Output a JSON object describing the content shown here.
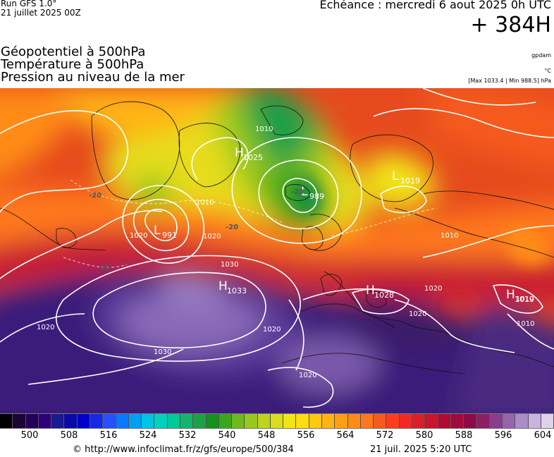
{
  "header": {
    "run_line1": "Run GFS 1.0°",
    "run_line2": "21 juillet 2025 00Z",
    "echeance": "Echéance : mercredi 6 aout 2025 0h UTC",
    "horizon": "+ 384H"
  },
  "parameters": [
    "Géopotentiel à 500hPa",
    "Température à 500hPa",
    "Pression au niveau de la mer"
  ],
  "units": {
    "geopotential": "gpdam",
    "temperature": "°C",
    "pressure_range": "[Max 1033.4 | Min 988.5] hPa"
  },
  "pressure_centers": [
    {
      "type": "H",
      "value": "1025"
    },
    {
      "type": "L",
      "value": "989"
    },
    {
      "type": "L",
      "value": "991"
    },
    {
      "type": "L",
      "value": "1019"
    },
    {
      "type": "H",
      "value": "1033"
    },
    {
      "type": "H",
      "value": "1028"
    },
    {
      "type": "H",
      "value": "1019"
    }
  ],
  "isobar_labels": [
    "1010",
    "1010",
    "1020",
    "1030",
    "1020",
    "1030",
    "1020",
    "1020",
    "1020",
    "1010",
    "1010",
    "1020",
    "1010",
    "1020"
  ],
  "temp_labels": [
    "-20",
    "-20",
    "-20",
    "-20"
  ],
  "color_scale": {
    "colors": [
      "#000000",
      "#1a0533",
      "#23005a",
      "#2d007a",
      "#1a1a8f",
      "#0a0aa8",
      "#0000c8",
      "#1428e6",
      "#2850ff",
      "#0a78ff",
      "#00a0f0",
      "#00c3e6",
      "#00d2be",
      "#00c896",
      "#14b46e",
      "#1ea046",
      "#14911e",
      "#3ca51e",
      "#6eb91e",
      "#96c81e",
      "#bed21e",
      "#dcdc1e",
      "#f0e614",
      "#ffdc14",
      "#ffc814",
      "#ffb414",
      "#ffa014",
      "#ff8c14",
      "#ff781e",
      "#f55a1e",
      "#ff3c1e",
      "#f02828",
      "#dc1e28",
      "#c8142d",
      "#b40a32",
      "#a00a3c",
      "#8c0a46",
      "#8c1e64",
      "#8c3c8c",
      "#9664aa",
      "#aa8cc8",
      "#c8b4dc",
      "#ddd2ea"
    ],
    "labels": [
      "500",
      "508",
      "516",
      "524",
      "532",
      "540",
      "548",
      "556",
      "564",
      "572",
      "580",
      "588",
      "596",
      "604"
    ]
  },
  "footer": {
    "url": "© http://www.infoclimat.fr/z/gfs/europe/500/384",
    "date": "21 juil. 2025  5:20 UTC"
  }
}
